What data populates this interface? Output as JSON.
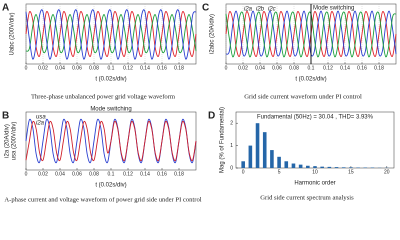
{
  "chart_data": [
    {
      "type": "line",
      "panel_label": "A",
      "caption": "Three-phase unbalanced power grid voltage waveform",
      "xlabel": "t (0.02s/div)",
      "ylabel": [
        "Uabc (200V/div)"
      ],
      "grid": true,
      "xlim": [
        0,
        0.2
      ],
      "ylim": [
        -1.3,
        1.3
      ],
      "xticks": [
        0,
        0.02,
        0.04,
        0.06,
        0.08,
        0.1,
        0.12,
        0.14,
        0.16,
        0.18
      ],
      "x": [
        0,
        0.004,
        0.008,
        0.012,
        0.016,
        0.02,
        0.024,
        0.028,
        0.032,
        0.036,
        0.04,
        0.044,
        0.048,
        0.052,
        0.056,
        0.06,
        0.064,
        0.068,
        0.072,
        0.076,
        0.08,
        0.084,
        0.088,
        0.092,
        0.096,
        0.1,
        0.104,
        0.108,
        0.112,
        0.116,
        0.12,
        0.124,
        0.128,
        0.132,
        0.136,
        0.14,
        0.144,
        0.148,
        0.152,
        0.156,
        0.16,
        0.164,
        0.168,
        0.172,
        0.176,
        0.18,
        0.184,
        0.188,
        0.192,
        0.196,
        0.2
      ],
      "series": [
        {
          "color": "#e0242c",
          "values": [
            0,
            0.95,
            0.59,
            -0.59,
            -0.95,
            0,
            0.95,
            0.59,
            -0.59,
            -0.95,
            0,
            0.95,
            0.59,
            -0.59,
            -0.95,
            0,
            0.95,
            0.59,
            -0.59,
            -0.95,
            0,
            0.95,
            0.59,
            -0.59,
            -0.95,
            0,
            0.95,
            0.59,
            -0.59,
            -0.95,
            0,
            0.95,
            0.59,
            -0.59,
            -0.95,
            0,
            0.95,
            0.59,
            -0.59,
            -0.95,
            0,
            0.95,
            0.59,
            -0.59,
            -0.95,
            0,
            0.95,
            0.59,
            -0.59,
            -0.95,
            0
          ]
        },
        {
          "color": "#1a9e3a",
          "values": [
            -0.74,
            -0.63,
            0.35,
            0.84,
            0.18,
            -0.74,
            -0.63,
            0.35,
            0.84,
            0.18,
            -0.74,
            -0.63,
            0.35,
            0.84,
            0.18,
            -0.74,
            -0.63,
            0.35,
            0.84,
            0.18,
            -0.74,
            -0.63,
            0.35,
            0.84,
            0.18,
            -0.74,
            -0.63,
            0.35,
            0.84,
            0.18,
            -0.74,
            -0.63,
            0.35,
            0.84,
            0.18,
            -0.74,
            -0.63,
            0.35,
            0.84,
            0.18,
            -0.74,
            -0.63,
            0.35,
            0.84,
            0.18,
            -0.74,
            -0.63,
            0.35,
            0.84,
            0.18,
            -0.74
          ]
        },
        {
          "color": "#2a3fd0",
          "values": [
            0.96,
            -0.23,
            -1.09,
            -0.45,
            0.81,
            0.96,
            -0.23,
            -1.09,
            -0.45,
            0.81,
            0.96,
            -0.23,
            -1.09,
            -0.45,
            0.81,
            0.96,
            -0.23,
            -1.09,
            -0.45,
            0.81,
            0.96,
            -0.23,
            -1.09,
            -0.45,
            0.81,
            0.96,
            -0.23,
            -1.09,
            -0.45,
            0.81,
            0.96,
            -0.23,
            -1.09,
            -0.45,
            0.81,
            0.96,
            -0.23,
            -1.09,
            -0.45,
            0.81,
            0.96,
            -0.23,
            -1.09,
            -0.45,
            0.81,
            0.96,
            -0.23,
            -1.09,
            -0.45,
            0.81,
            0.96
          ]
        }
      ]
    },
    {
      "type": "line",
      "panel_label": "C",
      "caption": "Grid side current waveform under PI control",
      "xlabel": "t (0.02s/div)",
      "ylabel": [
        "i2abc (20A/div)"
      ],
      "grid": true,
      "annotations": [
        {
          "text": "Mode switching",
          "x": 0.1,
          "line": true
        }
      ],
      "xlim": [
        0,
        0.2
      ],
      "ylim": [
        -1.3,
        1.3
      ],
      "xticks": [
        0,
        0.02,
        0.04,
        0.06,
        0.08,
        0.1,
        0.12,
        0.14,
        0.16,
        0.18
      ],
      "x": [
        0,
        0.004,
        0.008,
        0.012,
        0.016,
        0.02,
        0.024,
        0.028,
        0.032,
        0.036,
        0.04,
        0.044,
        0.048,
        0.052,
        0.056,
        0.06,
        0.064,
        0.068,
        0.072,
        0.076,
        0.08,
        0.084,
        0.088,
        0.092,
        0.096,
        0.1,
        0.104,
        0.108,
        0.112,
        0.116,
        0.12,
        0.124,
        0.128,
        0.132,
        0.136,
        0.14,
        0.144,
        0.148,
        0.152,
        0.156,
        0.16,
        0.164,
        0.168,
        0.172,
        0.176,
        0.18,
        0.184,
        0.188,
        0.192,
        0.196,
        0.2
      ],
      "series": [
        {
          "name": "i2a",
          "color": "#e0242c",
          "values": [
            0,
            0.95,
            0.59,
            -0.59,
            -0.95,
            0,
            0.95,
            0.59,
            -0.59,
            -0.95,
            0,
            0.95,
            0.59,
            -0.59,
            -0.95,
            0,
            0.95,
            0.59,
            -0.59,
            -0.95,
            0,
            0.95,
            0.59,
            -0.59,
            -0.95,
            0,
            0.95,
            0.59,
            -0.59,
            -0.95,
            0,
            0.95,
            0.59,
            -0.59,
            -0.95,
            0,
            0.95,
            0.59,
            -0.59,
            -0.95,
            0,
            0.95,
            0.59,
            -0.59,
            -0.95,
            0,
            0.95,
            0.59,
            -0.59,
            -0.95,
            0
          ]
        },
        {
          "name": "i2b",
          "color": "#2a3fd0",
          "values": [
            -0.87,
            -0.74,
            0.41,
            0.99,
            0.21,
            -0.87,
            -0.74,
            0.41,
            0.99,
            0.21,
            -0.87,
            -0.74,
            0.41,
            0.99,
            0.21,
            -0.87,
            -0.74,
            0.41,
            0.99,
            0.21,
            -0.87,
            -0.74,
            0.41,
            0.99,
            0.21,
            -0.87,
            -0.74,
            0.41,
            0.99,
            0.21,
            -0.87,
            -0.74,
            0.41,
            0.99,
            0.21,
            -0.87,
            -0.74,
            0.41,
            0.99,
            0.21,
            -0.87,
            -0.74,
            0.41,
            0.99,
            0.21,
            -0.87,
            -0.74,
            0.41,
            0.99,
            0.21,
            -0.87
          ]
        },
        {
          "name": "i2c",
          "color": "#1a9e3a",
          "values": [
            0.87,
            -0.21,
            -0.99,
            -0.41,
            0.74,
            0.87,
            -0.21,
            -0.99,
            -0.41,
            0.74,
            0.87,
            -0.21,
            -0.99,
            -0.41,
            0.74,
            0.87,
            -0.21,
            -0.99,
            -0.41,
            0.74,
            0.87,
            -0.21,
            -0.99,
            -0.41,
            0.74,
            0.87,
            -0.21,
            -0.99,
            -0.41,
            0.74,
            0.87,
            -0.21,
            -0.99,
            -0.41,
            0.74,
            0.87,
            -0.21,
            -0.99,
            -0.41,
            0.74,
            0.87,
            -0.21,
            -0.99,
            -0.41,
            0.74,
            0.87,
            -0.21,
            -0.99,
            -0.41,
            0.74,
            0.87
          ]
        }
      ]
    },
    {
      "type": "line",
      "panel_label": "B",
      "caption": "A-phase current and voltage waveform of power grid side under PI control",
      "xlabel": "t (0.02s/div)",
      "ylabel": [
        "i2a (20A/div)",
        "usa (200V/div)"
      ],
      "grid": false,
      "annotations": [
        {
          "text": "Mode switching",
          "x": 0.1,
          "line": false
        }
      ],
      "xlim": [
        0,
        0.2
      ],
      "ylim": [
        -1.3,
        1.3
      ],
      "xticks": [
        0,
        0.02,
        0.04,
        0.06,
        0.08,
        0.1,
        0.12,
        0.14,
        0.16,
        0.18
      ],
      "x": [
        0,
        0.004,
        0.008,
        0.012,
        0.016,
        0.02,
        0.024,
        0.028,
        0.032,
        0.036,
        0.04,
        0.044,
        0.048,
        0.052,
        0.056,
        0.06,
        0.064,
        0.068,
        0.072,
        0.076,
        0.08,
        0.084,
        0.088,
        0.092,
        0.096,
        0.1,
        0.104,
        0.108,
        0.112,
        0.116,
        0.12,
        0.124,
        0.128,
        0.132,
        0.136,
        0.14,
        0.144,
        0.148,
        0.152,
        0.156,
        0.16,
        0.164,
        0.168,
        0.172,
        0.176,
        0.18,
        0.184,
        0.188,
        0.192,
        0.196,
        0.2
      ],
      "series": [
        {
          "name": "usa",
          "color": "#2a3fd0",
          "values": [
            0,
            0.95,
            0.59,
            -0.59,
            -0.95,
            0,
            0.95,
            0.59,
            -0.59,
            -0.95,
            0,
            0.95,
            0.59,
            -0.59,
            -0.95,
            0,
            0.95,
            0.59,
            -0.59,
            -0.95,
            0,
            0.95,
            0.59,
            -0.59,
            -0.95,
            0,
            0.95,
            0.59,
            -0.59,
            -0.95,
            0,
            0.95,
            0.59,
            -0.59,
            -0.95,
            0,
            0.95,
            0.59,
            -0.59,
            -0.95,
            0,
            0.95,
            0.59,
            -0.59,
            -0.95,
            0,
            0.95,
            0.59,
            -0.59,
            -0.95,
            0
          ]
        },
        {
          "name": "i2a",
          "color": "#d0202a",
          "values": [
            -0.86,
            0,
            0.86,
            0.53,
            -0.53,
            -0.86,
            0,
            0.86,
            0.53,
            -0.53,
            -0.86,
            0,
            0.86,
            0.53,
            -0.53,
            -0.86,
            0,
            0.86,
            0.53,
            -0.53,
            -0.86,
            0,
            0.86,
            0.53,
            -0.53,
            0,
            0.86,
            0.53,
            -0.53,
            -0.86,
            0,
            0.86,
            0.53,
            -0.53,
            -0.86,
            0,
            0.86,
            0.53,
            -0.53,
            -0.86,
            0,
            0.86,
            0.53,
            -0.53,
            -0.86,
            0,
            0.86,
            0.53,
            -0.53,
            -0.86,
            0
          ]
        }
      ]
    },
    {
      "type": "bar",
      "panel_label": "D",
      "caption": "Grid side current spectrum analysis",
      "subtitle": "Fundamental (50Hz) = 30.04 , THD= 3.93%",
      "xlabel": "Harmonic order",
      "ylabel": [
        "Mag (% of Fundamental)"
      ],
      "color": "#2566a8",
      "xlim": [
        -1,
        21
      ],
      "ylim": [
        0,
        2.5
      ],
      "xticks": [
        0,
        5,
        10,
        15,
        20
      ],
      "yticks": [
        0,
        1,
        2
      ],
      "x": [
        0,
        1,
        2,
        3,
        4,
        5,
        6,
        7,
        8,
        9,
        10,
        11,
        12,
        13,
        14,
        15,
        16,
        17,
        18,
        19,
        20
      ],
      "values": [
        0.3,
        1.0,
        2.0,
        1.6,
        0.8,
        0.5,
        0.3,
        0.2,
        0.15,
        0.1,
        0.08,
        0.06,
        0.05,
        0.04,
        0.03,
        0.03,
        0.02,
        0.02,
        0.02,
        0.01,
        0.01
      ]
    }
  ]
}
